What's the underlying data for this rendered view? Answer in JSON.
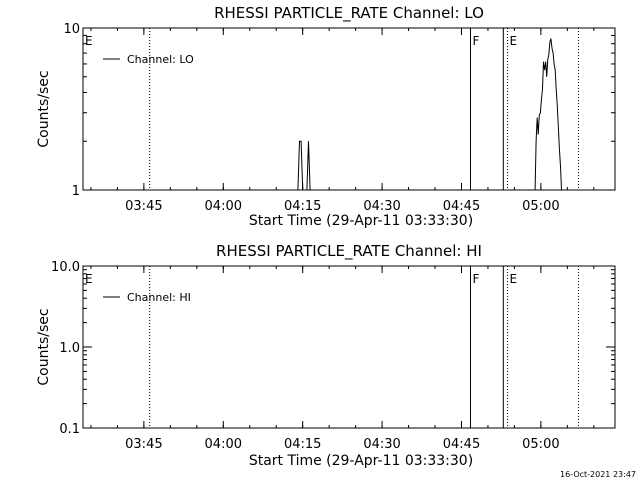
{
  "footer": {
    "timestamp": "16-Oct-2021 23:47"
  },
  "chart_data": [
    {
      "type": "line",
      "title": "RHESSI PARTICLE_RATE Channel: LO",
      "xlabel": "Start Time (29-Apr-11 03:33:30)",
      "ylabel": "Counts/sec",
      "x_range_minutes": [
        0,
        100.5
      ],
      "x_ticks": [
        {
          "label": "03:45",
          "minutes": 11.5
        },
        {
          "label": "04:00",
          "minutes": 26.5
        },
        {
          "label": "04:15",
          "minutes": 41.5
        },
        {
          "label": "04:30",
          "minutes": 56.5
        },
        {
          "label": "04:45",
          "minutes": 71.5
        },
        {
          "label": "05:00",
          "minutes": 86.5
        }
      ],
      "y_scale": "log",
      "ylim": [
        1,
        10
      ],
      "y_ticks": [
        {
          "label": "1",
          "value": 1
        },
        {
          "label": "10",
          "value": 10
        }
      ],
      "legend": {
        "label": "Channel: LO",
        "position": "top-left"
      },
      "markers": [
        {
          "label": "E",
          "minutes": 0,
          "style": "none"
        },
        {
          "label": "",
          "minutes": 12.6,
          "style": "dotted"
        },
        {
          "label": "F",
          "minutes": 73.2,
          "style": "solid"
        },
        {
          "label": "",
          "minutes": 79.4,
          "style": "solid"
        },
        {
          "label": "E",
          "minutes": 80.2,
          "style": "dotted"
        },
        {
          "label": "",
          "minutes": 93.6,
          "style": "dotted"
        }
      ],
      "series": [
        {
          "segments": [
            [
              [
                40.6,
                1
              ],
              [
                40.9,
                2
              ],
              [
                41.2,
                2
              ],
              [
                41.5,
                1
              ]
            ],
            [
              [
                42.3,
                1
              ],
              [
                42.6,
                2
              ],
              [
                42.9,
                1
              ]
            ],
            [
              [
                85.4,
                1
              ],
              [
                85.6,
                2
              ],
              [
                85.8,
                2.8
              ],
              [
                86.0,
                2.2
              ],
              [
                86.2,
                2.9
              ],
              [
                86.4,
                3.0
              ],
              [
                86.6,
                3.6
              ],
              [
                86.8,
                4.2
              ],
              [
                87.0,
                6.2
              ],
              [
                87.2,
                5.5
              ],
              [
                87.4,
                6.2
              ],
              [
                87.6,
                5.0
              ],
              [
                87.8,
                6.4
              ],
              [
                88.0,
                6.8
              ],
              [
                88.2,
                8.2
              ],
              [
                88.4,
                8.6
              ],
              [
                88.6,
                7.5
              ],
              [
                88.8,
                7.0
              ],
              [
                89.0,
                6.0
              ],
              [
                89.2,
                5.5
              ],
              [
                89.4,
                4.2
              ],
              [
                89.6,
                3.3
              ],
              [
                89.8,
                2.4
              ],
              [
                90.0,
                1.8
              ],
              [
                90.2,
                1.4
              ],
              [
                90.4,
                1
              ]
            ]
          ]
        }
      ]
    },
    {
      "type": "line",
      "title": "RHESSI PARTICLE_RATE Channel: HI",
      "xlabel": "Start Time (29-Apr-11 03:33:30)",
      "ylabel": "Counts/sec",
      "x_range_minutes": [
        0,
        100.5
      ],
      "x_ticks": [
        {
          "label": "03:45",
          "minutes": 11.5
        },
        {
          "label": "04:00",
          "minutes": 26.5
        },
        {
          "label": "04:15",
          "minutes": 41.5
        },
        {
          "label": "04:30",
          "minutes": 56.5
        },
        {
          "label": "04:45",
          "minutes": 71.5
        },
        {
          "label": "05:00",
          "minutes": 86.5
        }
      ],
      "y_scale": "log",
      "ylim": [
        0.1,
        10
      ],
      "y_ticks": [
        {
          "label": "0.1",
          "value": 0.1
        },
        {
          "label": "1.0",
          "value": 1
        },
        {
          "label": "10.0",
          "value": 10
        }
      ],
      "legend": {
        "label": "Channel: HI",
        "position": "top-left"
      },
      "markers": [
        {
          "label": "E",
          "minutes": 0,
          "style": "none"
        },
        {
          "label": "",
          "minutes": 12.6,
          "style": "dotted"
        },
        {
          "label": "F",
          "minutes": 73.2,
          "style": "solid"
        },
        {
          "label": "",
          "minutes": 79.4,
          "style": "solid"
        },
        {
          "label": "E",
          "minutes": 80.2,
          "style": "dotted"
        },
        {
          "label": "",
          "minutes": 93.6,
          "style": "dotted"
        }
      ],
      "series": [
        {
          "segments": []
        }
      ]
    }
  ]
}
